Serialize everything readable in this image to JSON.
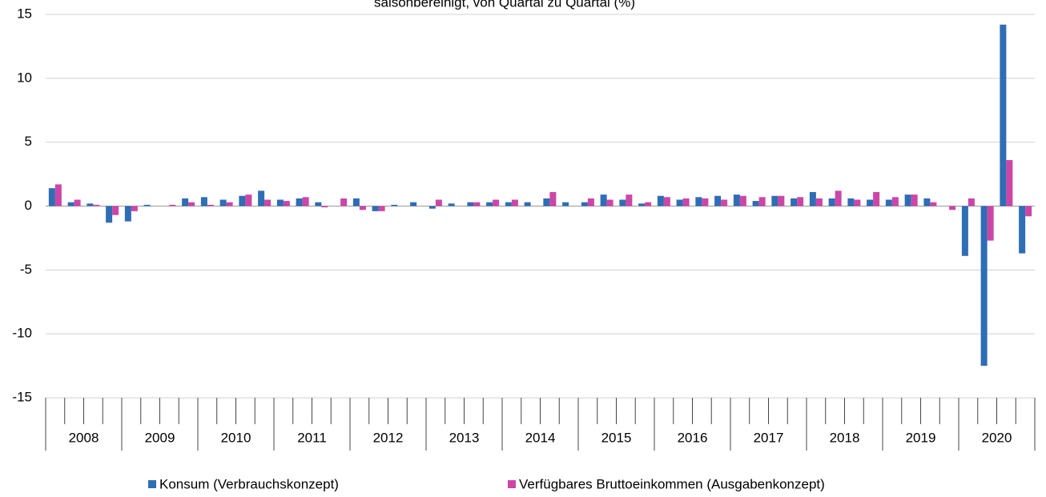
{
  "chart_data": {
    "type": "bar",
    "subtitle": "saisonbereinigt, von Quartal zu Quartal (%)",
    "categories": [
      "2008",
      "2009",
      "2010",
      "2011",
      "2012",
      "2013",
      "2014",
      "2015",
      "2016",
      "2017",
      "2018",
      "2019",
      "2020"
    ],
    "series": [
      {
        "name": "Konsum (Verbrauchskonzept)",
        "color": "#2f6db5",
        "values": [
          [
            1.4,
            0.3,
            0.2,
            -1.3
          ],
          [
            -1.2,
            0.1,
            0.0,
            0.6
          ],
          [
            0.7,
            0.5,
            0.8,
            1.2
          ],
          [
            0.5,
            0.6,
            0.3,
            0.0
          ],
          [
            0.6,
            -0.4,
            0.1,
            0.3
          ],
          [
            -0.2,
            0.2,
            0.3,
            0.3
          ],
          [
            0.3,
            0.3,
            0.6,
            0.3
          ],
          [
            0.3,
            0.9,
            0.5,
            0.2
          ],
          [
            0.8,
            0.5,
            0.7,
            0.8
          ],
          [
            0.9,
            0.4,
            0.8,
            0.6
          ],
          [
            1.1,
            0.6,
            0.6,
            0.5
          ],
          [
            0.5,
            0.9,
            0.6,
            0.0
          ],
          [
            -3.9,
            -12.5,
            14.2,
            -3.7
          ]
        ]
      },
      {
        "name": "Verfügbares Bruttoeinkommen (Ausgabenkonzept)",
        "color": "#cc46a8",
        "values": [
          [
            1.7,
            0.5,
            0.1,
            -0.7
          ],
          [
            -0.4,
            0.0,
            0.1,
            0.3
          ],
          [
            0.1,
            0.3,
            0.9,
            0.5
          ],
          [
            0.4,
            0.7,
            -0.1,
            0.6
          ],
          [
            -0.3,
            -0.4,
            0.0,
            0.0
          ],
          [
            0.5,
            0.0,
            0.3,
            0.5
          ],
          [
            0.5,
            0.0,
            1.1,
            0.0
          ],
          [
            0.6,
            0.5,
            0.9,
            0.3
          ],
          [
            0.7,
            0.6,
            0.6,
            0.5
          ],
          [
            0.8,
            0.7,
            0.8,
            0.7
          ],
          [
            0.6,
            1.2,
            0.5,
            1.1
          ],
          [
            0.7,
            0.9,
            0.3,
            -0.3
          ],
          [
            0.6,
            -2.7,
            3.6,
            -0.8
          ]
        ]
      }
    ],
    "ylim": [
      -15,
      15
    ],
    "yticks": [
      -15,
      -10,
      -5,
      0,
      5,
      10,
      15
    ],
    "grid": true,
    "legend": "bottom"
  }
}
